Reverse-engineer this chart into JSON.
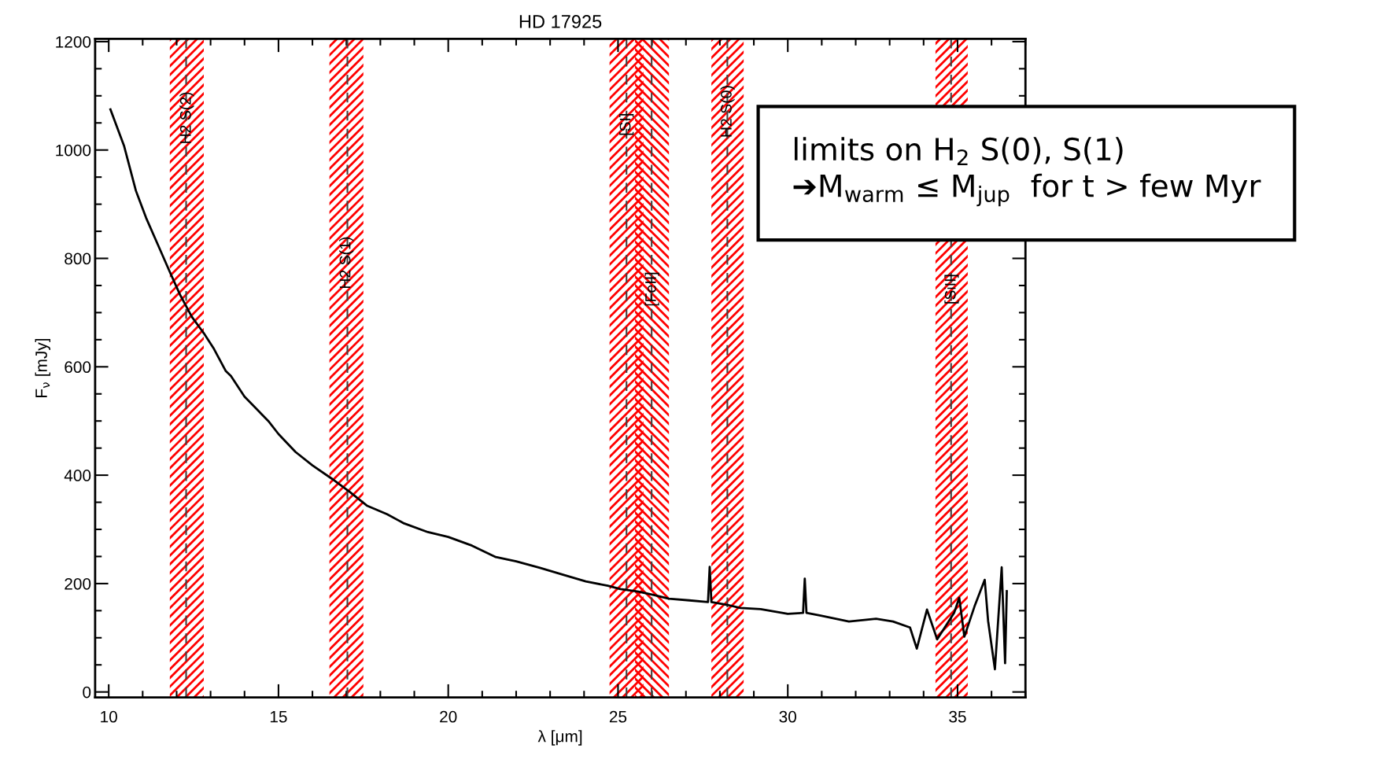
{
  "chart_data": {
    "type": "line",
    "title": "HD 17925",
    "xlabel": "λ [μm]",
    "ylabel": "F$_{ν}$ [mJy]",
    "xlim": [
      9.6,
      37.0
    ],
    "ylim": [
      -10,
      1205
    ],
    "xticks": [
      10,
      15,
      20,
      25,
      30,
      35
    ],
    "yticks": [
      0,
      200,
      400,
      600,
      800,
      1000,
      1200
    ],
    "grid": false,
    "legend": false,
    "series": [
      {
        "color": "#000000",
        "x": [
          10.05,
          10.45,
          10.8,
          11.1,
          11.45,
          11.8,
          12.1,
          12.45,
          12.8,
          13.1,
          13.45,
          13.6,
          14.0,
          14.7,
          15.0,
          15.5,
          16.0,
          16.56,
          17.1,
          17.6,
          18.2,
          18.7,
          19.4,
          20.0,
          20.7,
          21.4,
          22.0,
          22.7,
          23.4,
          24.05,
          24.7,
          25.07,
          25.6,
          26.05,
          26.5,
          27.1,
          27.65,
          27.7,
          27.75,
          28.2,
          28.6,
          29.2,
          30.0,
          30.45,
          30.5,
          30.55,
          30.97,
          31.8,
          32.6,
          33.1,
          33.6,
          33.8,
          34.1,
          34.4,
          34.9,
          35.05,
          35.2,
          35.5,
          35.8,
          35.9,
          36.1,
          36.3,
          36.4,
          36.45
        ],
        "values": [
          1075,
          1008,
          925,
          875,
          825,
          775,
          733,
          692,
          662,
          633,
          592,
          583,
          545,
          500,
          476,
          443,
          418,
          394,
          369,
          344,
          328,
          311,
          295,
          286,
          270,
          249,
          241,
          229,
          216,
          204,
          196,
          190,
          185,
          179,
          172,
          169,
          166,
          231,
          166,
          161,
          155,
          153,
          144,
          146,
          209,
          146,
          141,
          130,
          135,
          130,
          119,
          80,
          152,
          97,
          146,
          174,
          102,
          158,
          207,
          131,
          42,
          230,
          53,
          186
        ]
      }
    ],
    "bands": [
      {
        "axis": "x",
        "from": 11.8,
        "to": 12.8,
        "label": "H2 S(2)",
        "color": "#ff0000"
      },
      {
        "axis": "x",
        "from": 16.5,
        "to": 17.5,
        "label": "H2 S(1)",
        "color": "#ff0000"
      },
      {
        "axis": "x",
        "from": 24.75,
        "to": 25.75,
        "label": "[SI]",
        "color": "#ff0000"
      },
      {
        "axis": "x",
        "from": 25.5,
        "to": 26.5,
        "label": "[FeII]",
        "color": "#ff0000"
      },
      {
        "axis": "x",
        "from": 27.75,
        "to": 28.7,
        "label": "H2 S(0)",
        "color": "#ff0000"
      },
      {
        "axis": "x",
        "from": 34.35,
        "to": 35.3,
        "label": "[SiII]",
        "color": "#ff0000"
      }
    ],
    "ref_lines": [
      {
        "axis": "x",
        "value": 12.28,
        "color": "#404040",
        "line_style": "dashed"
      },
      {
        "axis": "x",
        "value": 17.03,
        "color": "#404040",
        "line_style": "dashed"
      },
      {
        "axis": "x",
        "value": 25.25,
        "color": "#404040",
        "line_style": "dashed"
      },
      {
        "axis": "x",
        "value": 25.99,
        "color": "#404040",
        "line_style": "dashed"
      },
      {
        "axis": "x",
        "value": 28.22,
        "color": "#404040",
        "line_style": "dashed"
      },
      {
        "axis": "x",
        "value": 34.81,
        "color": "#404040",
        "line_style": "dashed"
      }
    ],
    "annotations": [
      "limits on H$_{2}$ S(0), S(1)\n➔M$_{warm}$ ≤ M$_{jup}$  for t > few Myr"
    ]
  }
}
